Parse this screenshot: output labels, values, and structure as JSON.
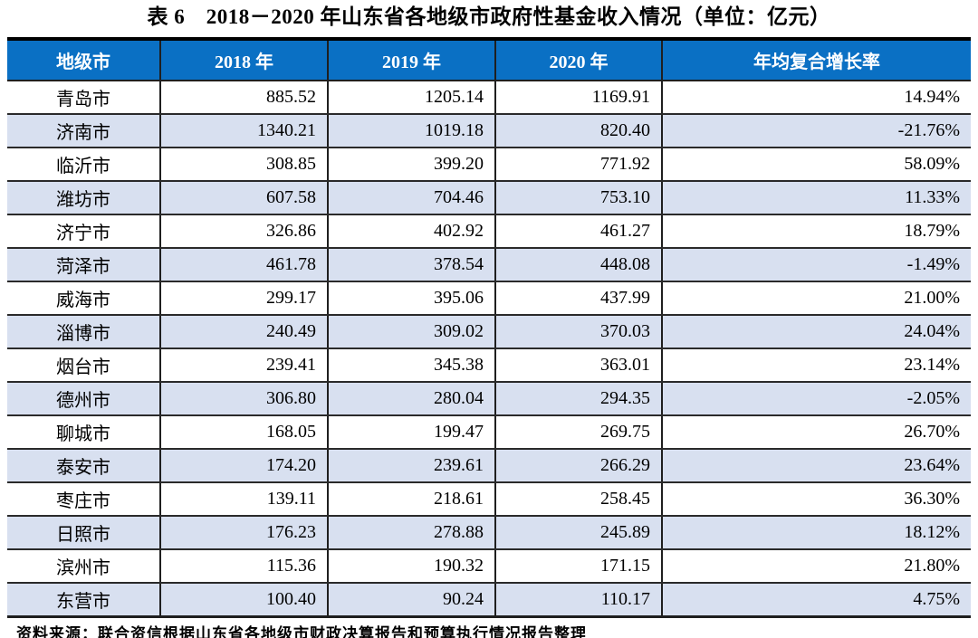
{
  "title": "表 6　2018－2020 年山东省各地级市政府性基金收入情况（单位：亿元）",
  "table": {
    "columns": [
      "地级市",
      "2018 年",
      "2019 年",
      "2020 年",
      "年均复合增长率"
    ],
    "rows": [
      [
        "青岛市",
        "885.52",
        "1205.14",
        "1169.91",
        "14.94%"
      ],
      [
        "济南市",
        "1340.21",
        "1019.18",
        "820.40",
        "-21.76%"
      ],
      [
        "临沂市",
        "308.85",
        "399.20",
        "771.92",
        "58.09%"
      ],
      [
        "潍坊市",
        "607.58",
        "704.46",
        "753.10",
        "11.33%"
      ],
      [
        "济宁市",
        "326.86",
        "402.92",
        "461.27",
        "18.79%"
      ],
      [
        "菏泽市",
        "461.78",
        "378.54",
        "448.08",
        "-1.49%"
      ],
      [
        "威海市",
        "299.17",
        "395.06",
        "437.99",
        "21.00%"
      ],
      [
        "淄博市",
        "240.49",
        "309.02",
        "370.03",
        "24.04%"
      ],
      [
        "烟台市",
        "239.41",
        "345.38",
        "363.01",
        "23.14%"
      ],
      [
        "德州市",
        "306.80",
        "280.04",
        "294.35",
        "-2.05%"
      ],
      [
        "聊城市",
        "168.05",
        "199.47",
        "269.75",
        "26.70%"
      ],
      [
        "泰安市",
        "174.20",
        "239.61",
        "266.29",
        "23.64%"
      ],
      [
        "枣庄市",
        "139.11",
        "218.61",
        "258.45",
        "36.30%"
      ],
      [
        "日照市",
        "176.23",
        "278.88",
        "245.89",
        "18.12%"
      ],
      [
        "滨州市",
        "115.36",
        "190.32",
        "171.15",
        "21.80%"
      ],
      [
        "东营市",
        "100.40",
        "90.24",
        "110.17",
        "4.75%"
      ]
    ]
  },
  "footer": {
    "source_note": "资料来源：联合资信根据山东省各地级市财政决算报告和预算执行情况报告整理"
  },
  "colors": {
    "header_bg": "#0a70c4",
    "header_text": "#ffffff",
    "stripe_bg": "#d8e0f0",
    "border": "#1f1f1f"
  }
}
